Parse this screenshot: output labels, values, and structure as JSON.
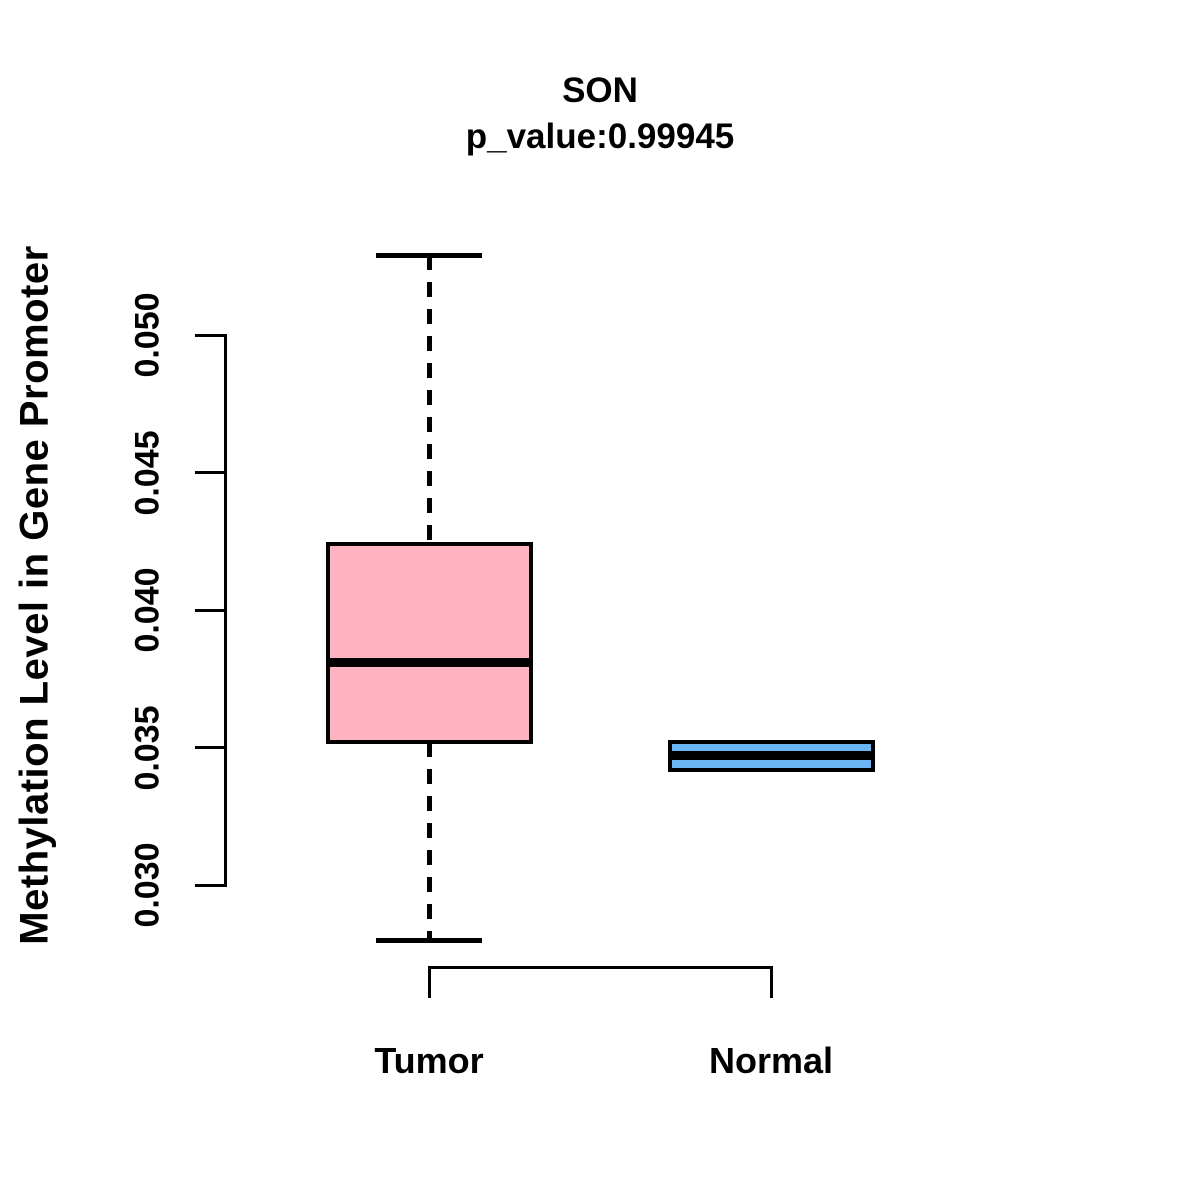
{
  "title": "SON",
  "subtitle": "p_value:0.99945",
  "chart_data": {
    "type": "boxplot",
    "title": "SON",
    "subtitle": "p_value:0.99945",
    "p_value": 0.99945,
    "gene": "SON",
    "xlabel": "",
    "ylabel": "Methylation Level in Gene Promoter",
    "ylim": [
      0.0275,
      0.0532
    ],
    "grid": false,
    "legend": "none",
    "y_ticks": [
      0.03,
      0.035,
      0.04,
      0.045,
      0.05
    ],
    "y_tick_labels": [
      "0.030",
      "0.035",
      "0.040",
      "0.045",
      "0.050"
    ],
    "categories": [
      "Tumor",
      "Normal"
    ],
    "groups": [
      {
        "label": "Tumor",
        "color": "#FFB3C1",
        "stats": {
          "lower_whisker": 0.028,
          "q1": 0.0352,
          "median": 0.0381,
          "q3": 0.0424,
          "upper_whisker": 0.0529
        }
      },
      {
        "label": "Normal",
        "color": "#6AB6F5",
        "stats": {
          "lower_whisker": 0.0342,
          "q1": 0.0342,
          "median": 0.0347,
          "q3": 0.0352,
          "upper_whisker": 0.0352
        }
      }
    ],
    "colors": {
      "box_border": "#000000",
      "median_line": "#000000",
      "whisker": "#000000",
      "axis": "#000000",
      "text": "#000000",
      "background": "#ffffff"
    }
  }
}
